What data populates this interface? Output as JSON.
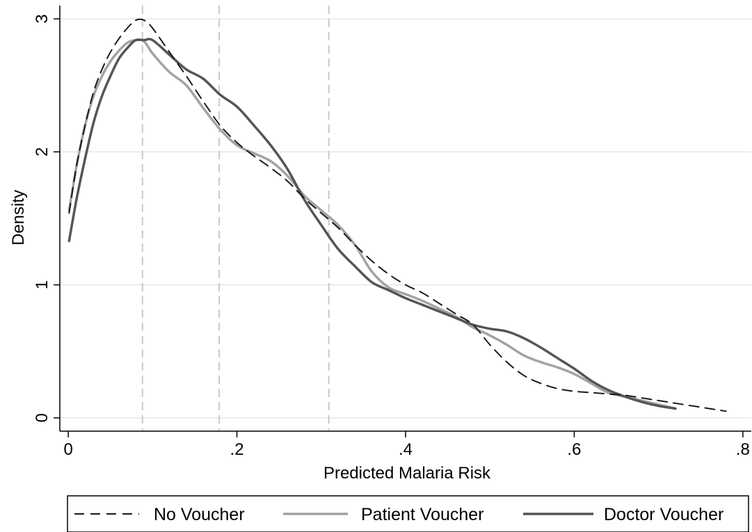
{
  "chart_data": {
    "type": "line",
    "xlabel": "Predicted Malaria Risk",
    "ylabel": "Density",
    "xlim": [
      -0.01,
      0.81
    ],
    "ylim": [
      -0.1,
      3.1
    ],
    "grid": true,
    "legend_position": "bottom",
    "x_ticks": [
      {
        "value": 0,
        "label": "0"
      },
      {
        "value": 0.2,
        "label": ".2"
      },
      {
        "value": 0.4,
        "label": ".4"
      },
      {
        "value": 0.6,
        "label": ".6"
      },
      {
        "value": 0.8,
        "label": ".8"
      }
    ],
    "y_ticks": [
      {
        "value": 0,
        "label": "0"
      },
      {
        "value": 1,
        "label": "1"
      },
      {
        "value": 2,
        "label": "2"
      },
      {
        "value": 3,
        "label": "3"
      }
    ],
    "reference_lines_x": [
      0.088,
      0.179,
      0.309
    ],
    "colors": {
      "grid": "#dfe9ec",
      "reference": "#c8c8c8",
      "axis": "#000000"
    },
    "series": [
      {
        "name": "No Voucher",
        "color": "#1a1a1a",
        "dash": "14 9",
        "width": 2,
        "points": [
          [
            0.001,
            1.54
          ],
          [
            0.01,
            1.9
          ],
          [
            0.02,
            2.2
          ],
          [
            0.03,
            2.45
          ],
          [
            0.04,
            2.62
          ],
          [
            0.05,
            2.75
          ],
          [
            0.06,
            2.85
          ],
          [
            0.07,
            2.93
          ],
          [
            0.08,
            2.99
          ],
          [
            0.09,
            2.99
          ],
          [
            0.1,
            2.93
          ],
          [
            0.12,
            2.75
          ],
          [
            0.14,
            2.57
          ],
          [
            0.16,
            2.38
          ],
          [
            0.18,
            2.2
          ],
          [
            0.2,
            2.07
          ],
          [
            0.22,
            1.97
          ],
          [
            0.24,
            1.88
          ],
          [
            0.26,
            1.78
          ],
          [
            0.28,
            1.65
          ],
          [
            0.3,
            1.54
          ],
          [
            0.32,
            1.43
          ],
          [
            0.34,
            1.3
          ],
          [
            0.36,
            1.18
          ],
          [
            0.38,
            1.08
          ],
          [
            0.4,
            1.0
          ],
          [
            0.42,
            0.94
          ],
          [
            0.44,
            0.86
          ],
          [
            0.46,
            0.78
          ],
          [
            0.48,
            0.7
          ],
          [
            0.5,
            0.55
          ],
          [
            0.52,
            0.42
          ],
          [
            0.54,
            0.32
          ],
          [
            0.56,
            0.26
          ],
          [
            0.58,
            0.22
          ],
          [
            0.6,
            0.2
          ],
          [
            0.62,
            0.19
          ],
          [
            0.64,
            0.18
          ],
          [
            0.66,
            0.17
          ],
          [
            0.68,
            0.15
          ],
          [
            0.7,
            0.13
          ],
          [
            0.72,
            0.11
          ],
          [
            0.74,
            0.09
          ],
          [
            0.76,
            0.07
          ],
          [
            0.78,
            0.05
          ]
        ]
      },
      {
        "name": "Patient Voucher",
        "color": "#a3a3a3",
        "dash": "",
        "width": 3.5,
        "points": [
          [
            0.001,
            1.56
          ],
          [
            0.01,
            1.9
          ],
          [
            0.02,
            2.2
          ],
          [
            0.03,
            2.42
          ],
          [
            0.04,
            2.57
          ],
          [
            0.05,
            2.68
          ],
          [
            0.06,
            2.76
          ],
          [
            0.07,
            2.82
          ],
          [
            0.08,
            2.84
          ],
          [
            0.09,
            2.83
          ],
          [
            0.1,
            2.74
          ],
          [
            0.12,
            2.6
          ],
          [
            0.14,
            2.5
          ],
          [
            0.16,
            2.33
          ],
          [
            0.18,
            2.17
          ],
          [
            0.2,
            2.05
          ],
          [
            0.22,
            1.99
          ],
          [
            0.24,
            1.93
          ],
          [
            0.26,
            1.82
          ],
          [
            0.28,
            1.67
          ],
          [
            0.3,
            1.56
          ],
          [
            0.32,
            1.45
          ],
          [
            0.34,
            1.3
          ],
          [
            0.36,
            1.1
          ],
          [
            0.38,
            0.98
          ],
          [
            0.4,
            0.93
          ],
          [
            0.42,
            0.88
          ],
          [
            0.44,
            0.82
          ],
          [
            0.46,
            0.76
          ],
          [
            0.48,
            0.68
          ],
          [
            0.5,
            0.62
          ],
          [
            0.52,
            0.55
          ],
          [
            0.54,
            0.47
          ],
          [
            0.56,
            0.42
          ],
          [
            0.58,
            0.38
          ],
          [
            0.6,
            0.33
          ],
          [
            0.62,
            0.26
          ],
          [
            0.64,
            0.19
          ],
          [
            0.66,
            0.16
          ],
          [
            0.68,
            0.13
          ],
          [
            0.7,
            0.1
          ],
          [
            0.72,
            0.07
          ]
        ]
      },
      {
        "name": "Doctor Voucher",
        "color": "#555555",
        "dash": "",
        "width": 3.5,
        "points": [
          [
            0.001,
            1.33
          ],
          [
            0.01,
            1.65
          ],
          [
            0.02,
            1.95
          ],
          [
            0.03,
            2.22
          ],
          [
            0.04,
            2.42
          ],
          [
            0.05,
            2.57
          ],
          [
            0.06,
            2.7
          ],
          [
            0.07,
            2.78
          ],
          [
            0.08,
            2.84
          ],
          [
            0.09,
            2.84
          ],
          [
            0.1,
            2.84
          ],
          [
            0.12,
            2.73
          ],
          [
            0.14,
            2.62
          ],
          [
            0.16,
            2.55
          ],
          [
            0.18,
            2.43
          ],
          [
            0.2,
            2.34
          ],
          [
            0.22,
            2.2
          ],
          [
            0.24,
            2.05
          ],
          [
            0.26,
            1.87
          ],
          [
            0.28,
            1.64
          ],
          [
            0.3,
            1.45
          ],
          [
            0.32,
            1.27
          ],
          [
            0.34,
            1.14
          ],
          [
            0.36,
            1.02
          ],
          [
            0.38,
            0.96
          ],
          [
            0.4,
            0.9
          ],
          [
            0.42,
            0.85
          ],
          [
            0.44,
            0.8
          ],
          [
            0.46,
            0.75
          ],
          [
            0.48,
            0.7
          ],
          [
            0.5,
            0.67
          ],
          [
            0.52,
            0.65
          ],
          [
            0.54,
            0.6
          ],
          [
            0.56,
            0.53
          ],
          [
            0.58,
            0.45
          ],
          [
            0.6,
            0.37
          ],
          [
            0.62,
            0.28
          ],
          [
            0.64,
            0.21
          ],
          [
            0.66,
            0.16
          ],
          [
            0.68,
            0.12
          ],
          [
            0.7,
            0.09
          ],
          [
            0.72,
            0.07
          ]
        ]
      }
    ]
  }
}
